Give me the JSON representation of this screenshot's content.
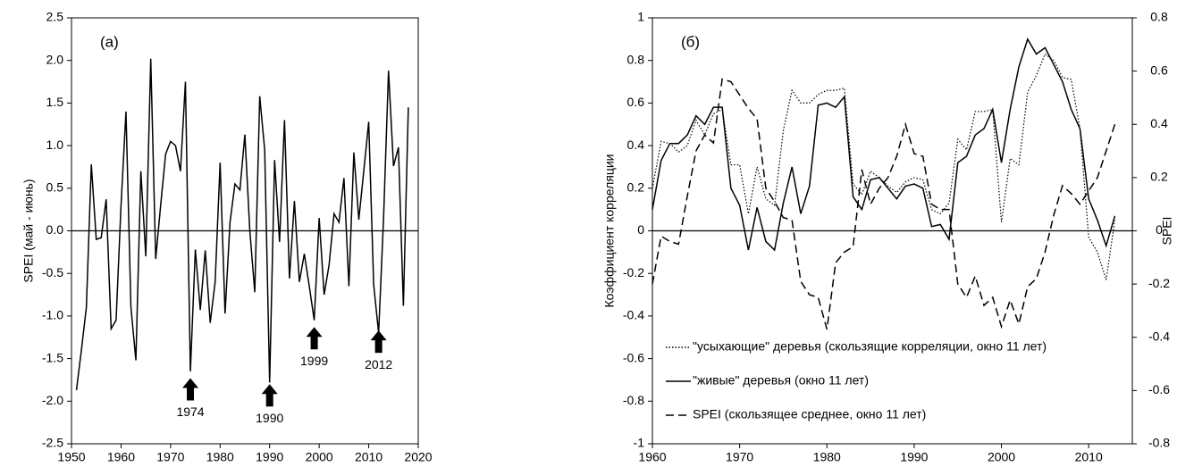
{
  "chart_data": [
    {
      "type": "line",
      "annotation": "(a)",
      "ylabel": "SPEI (май - июнь)",
      "x": [
        1951,
        1952,
        1953,
        1954,
        1955,
        1956,
        1957,
        1958,
        1959,
        1960,
        1961,
        1962,
        1963,
        1964,
        1965,
        1966,
        1967,
        1968,
        1969,
        1970,
        1971,
        1972,
        1973,
        1974,
        1975,
        1976,
        1977,
        1978,
        1979,
        1980,
        1981,
        1982,
        1983,
        1984,
        1985,
        1986,
        1987,
        1988,
        1989,
        1990,
        1991,
        1992,
        1993,
        1994,
        1995,
        1996,
        1997,
        1998,
        1999,
        2000,
        2001,
        2002,
        2003,
        2004,
        2005,
        2006,
        2007,
        2008,
        2009,
        2010,
        2011,
        2012,
        2013,
        2014,
        2015,
        2016,
        2017,
        2018
      ],
      "values": [
        -1.87,
        -1.4,
        -0.9,
        0.78,
        -0.1,
        -0.08,
        0.37,
        -1.15,
        -1.05,
        0.3,
        1.4,
        -0.9,
        -1.52,
        0.7,
        -0.3,
        2.02,
        -0.33,
        0.3,
        0.9,
        1.05,
        1.0,
        0.7,
        1.75,
        -1.65,
        -0.22,
        -0.93,
        -0.23,
        -1.08,
        -0.6,
        0.8,
        -0.97,
        0.1,
        0.55,
        0.48,
        1.13,
        0.0,
        -0.72,
        1.58,
        0.95,
        -1.78,
        0.83,
        -0.13,
        1.3,
        -0.56,
        0.35,
        -0.6,
        -0.27,
        -0.65,
        -1.05,
        0.15,
        -0.75,
        -0.4,
        0.2,
        0.1,
        0.62,
        -0.65,
        0.92,
        0.13,
        0.7,
        1.28,
        -0.63,
        -1.2,
        0.15,
        1.88,
        0.76,
        0.98,
        -0.88,
        1.45
      ],
      "color": "#000000",
      "xlim": [
        1950,
        2020
      ],
      "xticks": [
        1950,
        1960,
        1970,
        1980,
        1990,
        2000,
        2010,
        2020
      ],
      "ylim": [
        -2.5,
        2.5
      ],
      "yticks": [
        -2.5,
        {
          "value": -2,
          "label": "-2.0"
        },
        -1.5,
        {
          "value": -1,
          "label": "-1.0"
        },
        -0.5,
        {
          "value": 0,
          "label": "0.0"
        },
        0.5,
        {
          "value": 1,
          "label": "1.0"
        },
        1.5,
        {
          "value": 2,
          "label": "2.0"
        },
        2.5
      ],
      "arrows": [
        {
          "text": "1974",
          "x": 1974,
          "y": -1.73
        },
        {
          "text": "1990",
          "x": 1990,
          "y": -1.8
        },
        {
          "text": "1999",
          "x": 1999,
          "y": -1.13
        },
        {
          "text": "2012",
          "x": 2012,
          "y": -1.17
        }
      ]
    },
    {
      "type": "line",
      "annotation": "(б)",
      "ylabel": "Коэффициент корреляции",
      "y2label": "SPEI",
      "legend": "lower left",
      "x": [
        1960,
        1961,
        1962,
        1963,
        1964,
        1965,
        1966,
        1967,
        1968,
        1969,
        1970,
        1971,
        1972,
        1973,
        1974,
        1975,
        1976,
        1977,
        1978,
        1979,
        1980,
        1981,
        1982,
        1983,
        1984,
        1985,
        1986,
        1987,
        1988,
        1989,
        1990,
        1991,
        1992,
        1993,
        1994,
        1995,
        1996,
        1997,
        1998,
        1999,
        2000,
        2001,
        2002,
        2003,
        2004,
        2005,
        2006,
        2007,
        2008,
        2009,
        2010,
        2011,
        2012,
        2013
      ],
      "series": [
        {
          "name": "\"усыхающие\" деревья (скользящие корреляции, окно 11 лет)",
          "color": "#000000",
          "dash": "dotted",
          "values": [
            0.2,
            0.42,
            0.41,
            0.37,
            0.4,
            0.52,
            0.45,
            0.55,
            0.57,
            0.31,
            0.31,
            0.08,
            0.3,
            0.15,
            0.12,
            0.47,
            0.66,
            0.6,
            0.6,
            0.64,
            0.66,
            0.66,
            0.67,
            0.22,
            0.17,
            0.28,
            0.25,
            0.21,
            0.18,
            0.23,
            0.25,
            0.24,
            0.1,
            0.08,
            0.13,
            0.43,
            0.38,
            0.56,
            0.56,
            0.57,
            0.04,
            0.34,
            0.31,
            0.65,
            0.73,
            0.83,
            0.8,
            0.72,
            0.71,
            0.48,
            -0.03,
            -0.1,
            -0.23,
            0.05
          ]
        },
        {
          "name": "\"живые\" деревья (окно 11 лет)",
          "color": "#000000",
          "dash": "solid",
          "values": [
            0.1,
            0.33,
            0.41,
            0.41,
            0.45,
            0.54,
            0.5,
            0.58,
            0.58,
            0.2,
            0.12,
            -0.09,
            0.11,
            -0.05,
            -0.09,
            0.13,
            0.3,
            0.08,
            0.21,
            0.59,
            0.6,
            0.58,
            0.63,
            0.16,
            0.1,
            0.24,
            0.25,
            0.2,
            0.15,
            0.21,
            0.22,
            0.2,
            0.02,
            0.03,
            -0.04,
            0.32,
            0.35,
            0.45,
            0.48,
            0.57,
            0.32,
            0.57,
            0.77,
            0.9,
            0.83,
            0.86,
            0.78,
            0.7,
            0.57,
            0.48,
            0.15,
            0.05,
            -0.07,
            0.07
          ]
        },
        {
          "name": "SPEI (скользящее среднее, окно 11 лет)",
          "color": "#000000",
          "dash": "dashed",
          "axis": "y2",
          "values": [
            -0.2,
            -0.02,
            -0.04,
            -0.05,
            0.13,
            0.3,
            0.36,
            0.33,
            0.57,
            0.56,
            0.51,
            0.46,
            0.42,
            0.16,
            0.11,
            0.05,
            0.04,
            -0.19,
            -0.24,
            -0.25,
            -0.37,
            -0.12,
            -0.08,
            -0.06,
            0.23,
            0.1,
            0.16,
            0.2,
            0.28,
            0.4,
            0.29,
            0.28,
            0.1,
            0.08,
            0.08,
            -0.2,
            -0.25,
            -0.17,
            -0.28,
            -0.25,
            -0.36,
            -0.26,
            -0.35,
            -0.21,
            -0.18,
            -0.08,
            0.06,
            0.17,
            0.14,
            0.1,
            0.15,
            0.2,
            0.3,
            0.4
          ]
        }
      ],
      "xlim": [
        1960,
        2015
      ],
      "xticks": [
        1960,
        1970,
        1980,
        1990,
        2000,
        2010
      ],
      "ylim": [
        -1,
        1
      ],
      "yticks": [
        -1,
        -0.8,
        -0.6,
        -0.4,
        -0.2,
        0,
        0.2,
        0.4,
        0.6,
        0.8,
        1
      ],
      "y2lim": [
        -0.8,
        0.8
      ],
      "y2ticks": [
        -0.8,
        -0.6,
        -0.4,
        -0.2,
        0,
        0.2,
        0.4,
        0.6,
        0.8
      ]
    }
  ]
}
